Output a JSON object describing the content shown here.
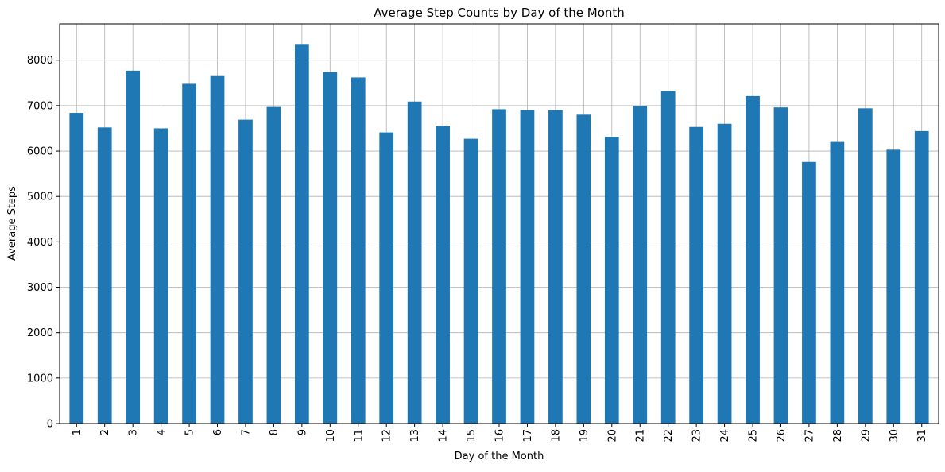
{
  "chart_data": {
    "type": "bar",
    "title": "Average Step Counts by Day of the Month",
    "xlabel": "Day of the Month",
    "ylabel": "Average Steps",
    "categories": [
      "1",
      "2",
      "3",
      "4",
      "5",
      "6",
      "7",
      "8",
      "9",
      "10",
      "11",
      "12",
      "13",
      "14",
      "15",
      "16",
      "17",
      "18",
      "19",
      "20",
      "21",
      "22",
      "23",
      "24",
      "25",
      "26",
      "27",
      "28",
      "29",
      "30",
      "31"
    ],
    "values": [
      6840,
      6520,
      7770,
      6500,
      7480,
      7650,
      6690,
      6970,
      8340,
      7740,
      7620,
      6410,
      7090,
      6550,
      6270,
      6920,
      6900,
      6900,
      6800,
      6310,
      6990,
      7320,
      6530,
      6600,
      7210,
      6960,
      5760,
      6200,
      6940,
      6030,
      6440
    ],
    "ylim": [
      0,
      8800
    ],
    "yticks": [
      0,
      1000,
      2000,
      3000,
      4000,
      5000,
      6000,
      7000,
      8000
    ],
    "grid": true,
    "legend": "none",
    "bar_color": "#1f77b4"
  }
}
